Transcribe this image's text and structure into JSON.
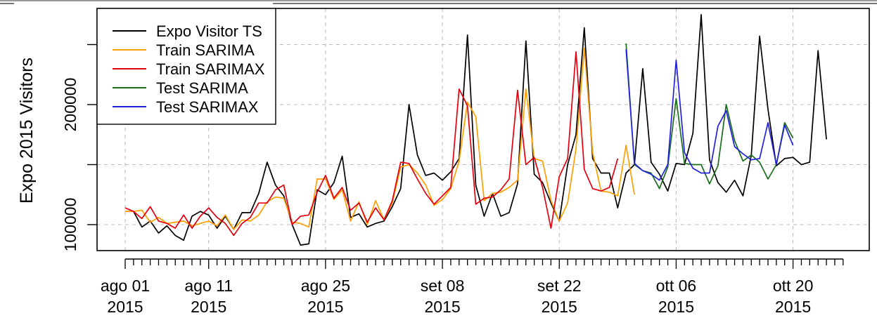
{
  "chart_data": {
    "type": "line",
    "ylabel": "Expo 2015 Visitors",
    "ylim": [
      80000,
      270000
    ],
    "yticks": [
      100000,
      200000
    ],
    "ytick_labels": [
      "100000",
      "200000"
    ],
    "x_start_date": "2015-08-01",
    "xlim_days": [
      0,
      86
    ],
    "grid": true,
    "legend_position": "top-left",
    "xticks": [
      {
        "label": "ago 01",
        "year": "2015",
        "day": 0
      },
      {
        "label": "ago 11",
        "year": "2015",
        "day": 10
      },
      {
        "label": "ago 25",
        "year": "2015",
        "day": 24
      },
      {
        "label": "set 08",
        "year": "2015",
        "day": 38
      },
      {
        "label": "set 22",
        "year": "2015",
        "day": 52
      },
      {
        "label": "ott 06",
        "year": "2015",
        "day": 66
      },
      {
        "label": "ott 20",
        "year": "2015",
        "day": 80
      }
    ],
    "series": [
      {
        "name": "Expo Visitor TS",
        "color": "#000000",
        "start_day": 0,
        "values": [
          111000,
          111000,
          98000,
          103000,
          93000,
          99000,
          91000,
          87000,
          107000,
          111000,
          108000,
          97000,
          107000,
          96000,
          110000,
          110000,
          126000,
          152000,
          133000,
          124000,
          100000,
          83000,
          84000,
          129000,
          125000,
          135000,
          157000,
          106000,
          109000,
          98000,
          101000,
          103000,
          115000,
          130000,
          200000,
          158000,
          141000,
          143000,
          137000,
          144000,
          155000,
          258000,
          133000,
          107000,
          126000,
          107000,
          110000,
          134000,
          253000,
          142000,
          135000,
          118000,
          103000,
          150000,
          175000,
          264000,
          155000,
          143000,
          143000,
          114000,
          143000,
          150000,
          230000,
          152000,
          142000,
          128000,
          151000,
          150000,
          176000,
          275000,
          154000,
          135000,
          127000,
          137000,
          124000,
          158000,
          257000,
          196000,
          149000,
          155000,
          156000,
          150000,
          152000,
          245000,
          171000
        ]
      },
      {
        "name": "Train SARIMA",
        "color": "#ff9f00",
        "start_day": 0,
        "values": [
          111000,
          111000,
          112000,
          102000,
          106000,
          101000,
          102000,
          103000,
          99000,
          101000,
          103000,
          99000,
          108000,
          96000,
          104000,
          103000,
          108000,
          119000,
          123000,
          122000,
          102000,
          101000,
          98000,
          138000,
          138000,
          121000,
          129000,
          103000,
          119000,
          100000,
          120000,
          104000,
          118000,
          148000,
          150000,
          143000,
          133000,
          116000,
          121000,
          130000,
          153000,
          202000,
          190000,
          120000,
          126000,
          127000,
          131000,
          137000,
          213000,
          155000,
          153000,
          120000,
          103000,
          118000,
          163000,
          247000,
          160000,
          128000,
          127000,
          124000,
          166000,
          125000
        ]
      },
      {
        "name": "Train SARIMAX",
        "color": "#e4000f",
        "start_day": 0,
        "values": [
          114000,
          111000,
          105000,
          115000,
          103000,
          101000,
          97000,
          108000,
          97000,
          107000,
          114000,
          106000,
          101000,
          91000,
          101000,
          106000,
          118000,
          118000,
          129000,
          133000,
          100000,
          107000,
          108000,
          127000,
          141000,
          122000,
          131000,
          112000,
          118000,
          102000,
          114000,
          104000,
          120000,
          152000,
          151000,
          138000,
          126000,
          117000,
          124000,
          131000,
          213000,
          199000,
          117000,
          122000,
          123000,
          129000,
          138000,
          212000,
          150000,
          156000,
          131000,
          97000,
          140000,
          155000,
          244000,
          146000,
          130000,
          128000,
          131000,
          155000
        ]
      },
      {
        "name": "Test SARIMA",
        "color": "#1a6f1a",
        "start_day": 60,
        "values": [
          251000,
          150000,
          145000,
          143000,
          130000,
          148000,
          205000,
          151000,
          150000,
          150000,
          134000,
          149000,
          200000,
          170000,
          153000,
          158000,
          152000,
          138000,
          150000,
          185000,
          172000
        ]
      },
      {
        "name": "Test SARIMAX",
        "color": "#2222dd",
        "start_day": 60,
        "values": [
          246000,
          151000,
          145000,
          142000,
          137000,
          150000,
          237000,
          160000,
          147000,
          143000,
          143000,
          182000,
          195000,
          165000,
          159000,
          154000,
          155000,
          185000,
          150000,
          183000,
          166000
        ]
      }
    ]
  }
}
